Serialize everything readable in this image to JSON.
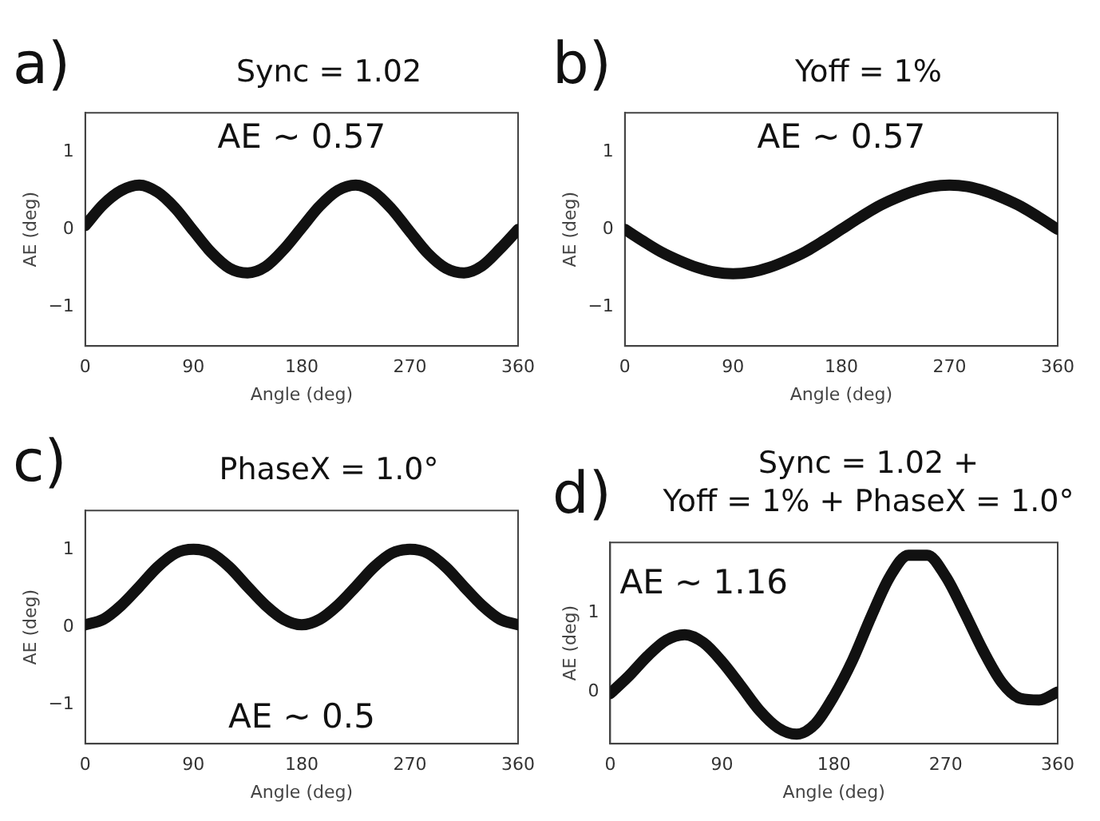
{
  "chart_data": [
    {
      "type": "line",
      "title": "Sync = 1.02",
      "xlabel": "Angle (deg)",
      "ylabel": "AE (deg)",
      "annotations": [
        "a)",
        "AE ~ 0.57"
      ],
      "xlim": [
        0,
        360
      ],
      "xticks": [
        0,
        90,
        180,
        270,
        360
      ],
      "ylim": [
        -1.5,
        1.5
      ],
      "yticks": [
        -1,
        0,
        1
      ],
      "grid": false,
      "legend": false,
      "marker": "none",
      "x": [
        0,
        15,
        30,
        45,
        60,
        75,
        90,
        105,
        120,
        135,
        150,
        165,
        180,
        195,
        210,
        225,
        240,
        255,
        270,
        285,
        300,
        315,
        330,
        345,
        360
      ],
      "series": [
        {
          "color": "#111111",
          "values": [
            0.05,
            0.32,
            0.5,
            0.57,
            0.48,
            0.27,
            -0.02,
            -0.3,
            -0.5,
            -0.56,
            -0.48,
            -0.26,
            0.02,
            0.3,
            0.5,
            0.57,
            0.48,
            0.26,
            -0.03,
            -0.31,
            -0.5,
            -0.56,
            -0.47,
            -0.25,
            0.0
          ]
        }
      ]
    },
    {
      "type": "line",
      "title": "Yoff = 1%",
      "xlabel": "Angle (deg)",
      "ylabel": "AE (deg)",
      "annotations": [
        "b)",
        "AE ~ 0.57"
      ],
      "xlim": [
        0,
        360
      ],
      "xticks": [
        0,
        90,
        180,
        270,
        360
      ],
      "ylim": [
        -1.5,
        1.5
      ],
      "yticks": [
        -1,
        0,
        1
      ],
      "grid": false,
      "legend": false,
      "marker": "none",
      "x": [
        0,
        15,
        30,
        45,
        60,
        75,
        90,
        105,
        120,
        135,
        150,
        165,
        180,
        195,
        210,
        225,
        240,
        255,
        270,
        285,
        300,
        315,
        330,
        345,
        360
      ],
      "series": [
        {
          "color": "#111111",
          "values": [
            0.0,
            -0.15,
            -0.29,
            -0.4,
            -0.49,
            -0.55,
            -0.57,
            -0.55,
            -0.49,
            -0.4,
            -0.29,
            -0.15,
            0.0,
            0.15,
            0.29,
            0.4,
            0.49,
            0.55,
            0.57,
            0.55,
            0.49,
            0.4,
            0.29,
            0.15,
            0.0
          ]
        }
      ]
    },
    {
      "type": "line",
      "title": "PhaseX = 1.0°",
      "xlabel": "Angle (deg)",
      "ylabel": "AE (deg)",
      "annotations": [
        "c)",
        "AE ~ 0.5"
      ],
      "xlim": [
        0,
        360
      ],
      "xticks": [
        0,
        90,
        180,
        270,
        360
      ],
      "ylim": [
        -1.5,
        1.5
      ],
      "yticks": [
        -1,
        0,
        1
      ],
      "grid": false,
      "legend": false,
      "marker": "none",
      "x": [
        0,
        15,
        30,
        45,
        60,
        75,
        90,
        105,
        120,
        135,
        150,
        165,
        180,
        195,
        210,
        225,
        240,
        255,
        270,
        285,
        300,
        315,
        330,
        345,
        360
      ],
      "series": [
        {
          "color": "#111111",
          "values": [
            0.03,
            0.1,
            0.28,
            0.52,
            0.77,
            0.95,
            1.0,
            0.95,
            0.77,
            0.52,
            0.28,
            0.1,
            0.03,
            0.1,
            0.28,
            0.52,
            0.77,
            0.95,
            1.0,
            0.95,
            0.77,
            0.52,
            0.28,
            0.1,
            0.03
          ]
        }
      ]
    },
    {
      "type": "line",
      "title": "Sync = 1.02 +\nYoff = 1% + PhaseX = 1.0°",
      "xlabel": "Angle (deg)",
      "ylabel": "AE (deg)",
      "annotations": [
        "d)",
        "AE ~ 1.16"
      ],
      "xlim": [
        0,
        360
      ],
      "xticks": [
        0,
        90,
        180,
        270,
        360
      ],
      "ylim": [
        -0.65,
        1.88
      ],
      "yticks": [
        0,
        1
      ],
      "grid": false,
      "legend": false,
      "marker": "none",
      "x": [
        0,
        15,
        30,
        45,
        60,
        75,
        90,
        105,
        120,
        135,
        150,
        165,
        180,
        195,
        210,
        225,
        240,
        255,
        270,
        285,
        300,
        315,
        330,
        345,
        360
      ],
      "series": [
        {
          "color": "#111111",
          "values": [
            -0.02,
            0.2,
            0.45,
            0.65,
            0.72,
            0.62,
            0.38,
            0.08,
            -0.23,
            -0.45,
            -0.53,
            -0.4,
            -0.05,
            0.4,
            0.95,
            1.45,
            1.72,
            1.72,
            1.45,
            1.0,
            0.52,
            0.12,
            -0.08,
            -0.1,
            0.0
          ]
        }
      ]
    }
  ]
}
